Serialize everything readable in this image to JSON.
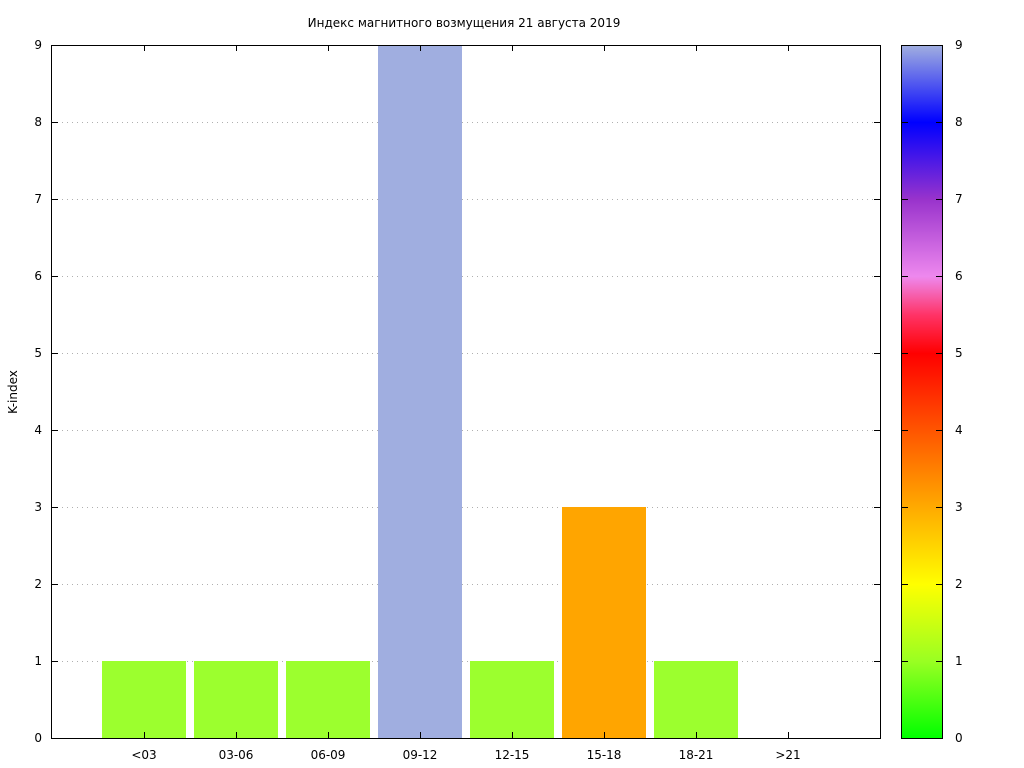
{
  "chart_data": {
    "type": "bar",
    "title": "Индекс магнитного возмущения 21 августа 2019",
    "xlabel": "",
    "ylabel": "K-index",
    "categories": [
      "<03",
      "03-06",
      "06-09",
      "09-12",
      "12-15",
      "15-18",
      "18-21",
      ">21"
    ],
    "values": [
      1,
      1,
      1,
      9,
      1,
      3,
      1,
      null
    ],
    "ylim": [
      0,
      9
    ],
    "yticks": [
      "0",
      "1",
      "2",
      "3",
      "4",
      "5",
      "6",
      "7",
      "8",
      "9"
    ],
    "grid": "horizontal dotted",
    "bar_colors": [
      "#9cff2e",
      "#9cff2e",
      "#9cff2e",
      "#a0aee0",
      "#9cff2e",
      "#ffa500",
      "#9cff2e",
      null
    ],
    "colorbar": {
      "range": [
        0,
        9
      ],
      "ticks": [
        "0",
        "1",
        "2",
        "3",
        "4",
        "5",
        "6",
        "7",
        "8",
        "9"
      ],
      "stops": [
        {
          "value": 0,
          "color": "#00ff00"
        },
        {
          "value": 1,
          "color": "#99ff22"
        },
        {
          "value": 2,
          "color": "#ffff00"
        },
        {
          "value": 3,
          "color": "#ffaa00"
        },
        {
          "value": 4,
          "color": "#ff5500"
        },
        {
          "value": 5,
          "color": "#ff0000"
        },
        {
          "value": 5.5,
          "color": "#ff3366"
        },
        {
          "value": 6,
          "color": "#ee88ee"
        },
        {
          "value": 7,
          "color": "#9933cc"
        },
        {
          "value": 8,
          "color": "#0000ff"
        },
        {
          "value": 9,
          "color": "#a0aee0"
        }
      ]
    }
  }
}
